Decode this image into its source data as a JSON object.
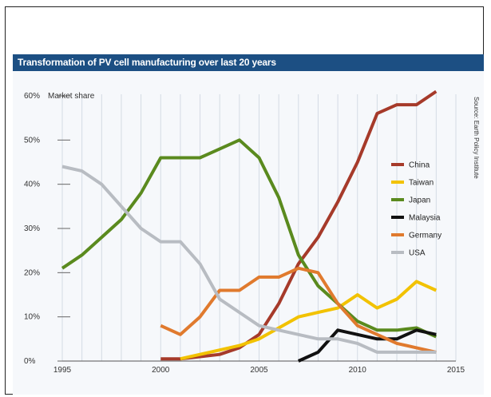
{
  "chart_data": {
    "type": "line",
    "title": "Transformation of PV cell manufacturing over last 20 years",
    "ylabel": "Market share",
    "source": "Source: Earth Policy Institute",
    "xlim": [
      1995,
      2015
    ],
    "ylim": [
      0,
      60
    ],
    "x_ticks": [
      1995,
      2000,
      2005,
      2010,
      2015
    ],
    "y_ticks": [
      0,
      10,
      20,
      30,
      40,
      50,
      60
    ],
    "y_tick_labels": [
      "0%",
      "10%",
      "20%",
      "30%",
      "40%",
      "50%",
      "60%"
    ],
    "grid": "vertical",
    "legend_position": "right",
    "series": [
      {
        "name": "China",
        "color": "#a63a2a",
        "points": [
          [
            2000,
            0.5
          ],
          [
            2001,
            0.5
          ],
          [
            2002,
            1
          ],
          [
            2003,
            1.5
          ],
          [
            2004,
            3
          ],
          [
            2005,
            6
          ],
          [
            2006,
            13
          ],
          [
            2007,
            22
          ],
          [
            2008,
            28
          ],
          [
            2009,
            36
          ],
          [
            2010,
            45
          ],
          [
            2011,
            56
          ],
          [
            2012,
            58
          ],
          [
            2013,
            58
          ],
          [
            2014,
            61
          ]
        ]
      },
      {
        "name": "Taiwan",
        "color": "#f2c200",
        "points": [
          [
            2001,
            0.5
          ],
          [
            2002,
            1.5
          ],
          [
            2003,
            2.5
          ],
          [
            2004,
            3.5
          ],
          [
            2005,
            5
          ],
          [
            2006,
            7.5
          ],
          [
            2007,
            10
          ],
          [
            2008,
            11
          ],
          [
            2009,
            12
          ],
          [
            2010,
            15
          ],
          [
            2011,
            12
          ],
          [
            2012,
            14
          ],
          [
            2013,
            18
          ],
          [
            2014,
            16
          ]
        ]
      },
      {
        "name": "Japan",
        "color": "#5a8a1e",
        "points": [
          [
            1995,
            21
          ],
          [
            1996,
            24
          ],
          [
            1997,
            28
          ],
          [
            1998,
            32
          ],
          [
            1999,
            38
          ],
          [
            2000,
            46
          ],
          [
            2001,
            46
          ],
          [
            2002,
            46
          ],
          [
            2003,
            48
          ],
          [
            2004,
            50
          ],
          [
            2005,
            46
          ],
          [
            2006,
            37
          ],
          [
            2007,
            24
          ],
          [
            2008,
            17
          ],
          [
            2009,
            13
          ],
          [
            2010,
            9
          ],
          [
            2011,
            7
          ],
          [
            2012,
            7
          ],
          [
            2013,
            7.5
          ],
          [
            2014,
            5.5
          ]
        ]
      },
      {
        "name": "Malaysia",
        "color": "#111111",
        "points": [
          [
            2007,
            0
          ],
          [
            2008,
            2
          ],
          [
            2009,
            7
          ],
          [
            2010,
            6
          ],
          [
            2011,
            5
          ],
          [
            2012,
            5
          ],
          [
            2013,
            7
          ],
          [
            2014,
            6
          ]
        ]
      },
      {
        "name": "Germany",
        "color": "#e07a2e",
        "points": [
          [
            2000,
            8
          ],
          [
            2001,
            6
          ],
          [
            2002,
            10
          ],
          [
            2003,
            16
          ],
          [
            2004,
            16
          ],
          [
            2005,
            19
          ],
          [
            2006,
            19
          ],
          [
            2007,
            21
          ],
          [
            2008,
            20
          ],
          [
            2009,
            13
          ],
          [
            2010,
            8
          ],
          [
            2011,
            6
          ],
          [
            2012,
            4
          ],
          [
            2013,
            3
          ],
          [
            2014,
            2
          ]
        ]
      },
      {
        "name": "USA",
        "color": "#b8bcc2",
        "points": [
          [
            1995,
            44
          ],
          [
            1996,
            43
          ],
          [
            1997,
            40
          ],
          [
            1998,
            35
          ],
          [
            1999,
            30
          ],
          [
            2000,
            27
          ],
          [
            2001,
            27
          ],
          [
            2002,
            22
          ],
          [
            2003,
            14
          ],
          [
            2004,
            11
          ],
          [
            2005,
            8
          ],
          [
            2006,
            7
          ],
          [
            2007,
            6
          ],
          [
            2008,
            5
          ],
          [
            2009,
            5
          ],
          [
            2010,
            4
          ],
          [
            2011,
            2
          ],
          [
            2012,
            2
          ],
          [
            2013,
            2
          ],
          [
            2014,
            2
          ]
        ]
      }
    ]
  }
}
